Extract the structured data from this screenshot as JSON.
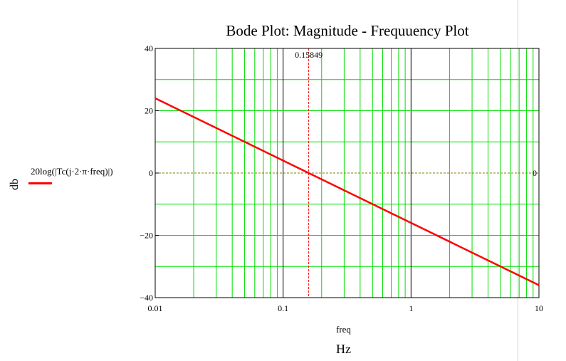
{
  "chart_data": {
    "type": "line",
    "title": "Bode Plot: Magnitude - Frequuency Plot",
    "ylabel": "db",
    "xlabel": "freq",
    "xunit": "Hz",
    "xscale": "log",
    "xlim": [
      0.01,
      10
    ],
    "ylim": [
      -40,
      40
    ],
    "x_ticks": [
      "0.01",
      "0.1",
      "1",
      "10"
    ],
    "y_ticks": [
      "-40",
      "-20",
      "0",
      "20",
      "40"
    ],
    "series": [
      {
        "name": "20log(|Tc(j·2·π·freq)|)",
        "color": "#ff0000",
        "x": [
          0.01,
          0.1,
          0.15849,
          1,
          10
        ],
        "y": [
          24,
          4,
          0,
          -16,
          -36
        ]
      }
    ],
    "markers": {
      "vertical": {
        "x": 0.15849,
        "label": "0.15849",
        "color": "#ff0000"
      },
      "horizontal": {
        "y": 0,
        "label": "0",
        "color": "#808000"
      }
    },
    "grid": true,
    "minor_grid_color": "#00dd00",
    "major_grid_color": "#000000"
  },
  "legend": {
    "prefix": "20log(",
    "expr": "|Tc(j·2·π·freq)|",
    "suffix": ")"
  }
}
